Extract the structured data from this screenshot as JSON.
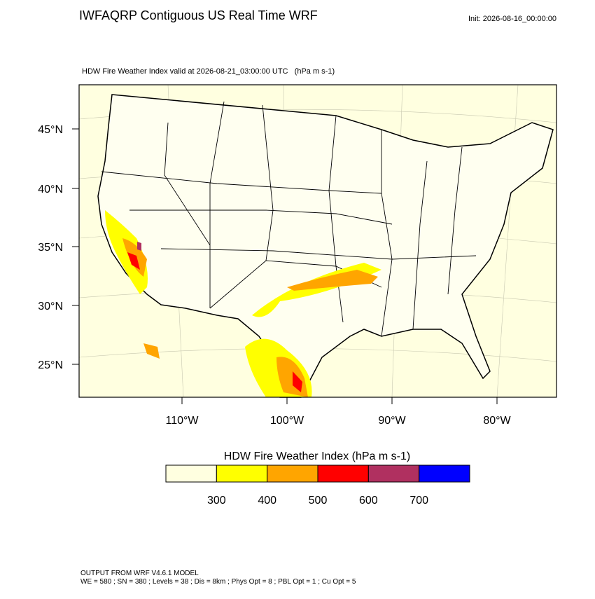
{
  "header": {
    "title": "IWFAQRP Contiguous US Real Time WRF",
    "init": "Init: 2026-08-16_00:00:00",
    "subtitle": "HDW Fire Weather Index valid at 2026-08-21_03:00:00 UTC   (hPa m s-1)"
  },
  "map": {
    "lat_labels": [
      "45°N",
      "40°N",
      "35°N",
      "30°N",
      "25°N"
    ],
    "lon_labels": [
      "110°W",
      "100°W",
      "90°W",
      "80°W"
    ]
  },
  "colorbar": {
    "title": "HDW Fire Weather Index (hPa m s-1)",
    "colors": [
      "#ffffe0",
      "#ffff00",
      "#ffa500",
      "#ff0000",
      "#b03060",
      "#0000ff"
    ],
    "ticks": [
      300,
      400,
      500,
      600,
      700
    ]
  },
  "footer": {
    "line1": "OUTPUT FROM WRF V4.6.1 MODEL",
    "line2": "WE = 580 ; SN = 380 ; Levels = 38 ; Dis = 8km ; Phys Opt = 8 ; PBL Opt = 1 ; Cu Opt = 5"
  }
}
